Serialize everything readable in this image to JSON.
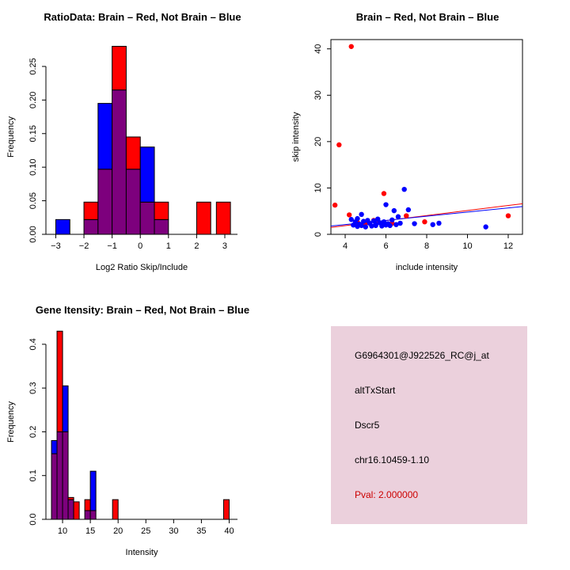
{
  "info_box": {
    "probe_id": "G6964301@J922526_RC@j_at",
    "event_type": "altTxStart",
    "gene": "Dscr5",
    "location": "chr16.10459-1.10",
    "pval": "Pval: 2.000000",
    "bg_color": "#EBD0DC",
    "pval_color": "#CC0000"
  },
  "chart_data": [
    {
      "type": "bar",
      "title": "RatioData: Brain – Red, Not Brain – Blue",
      "xlabel": "Log2 Ratio Skip/Include",
      "ylabel": "Frequency",
      "xlim": [
        -3.35,
        3.45
      ],
      "ylim": [
        0,
        0.29
      ],
      "grid": false,
      "legend": "none",
      "bin_width": 0.5,
      "bin_starts": [
        -3,
        -2.5,
        -2,
        -1.5,
        -1,
        -0.5,
        0,
        0.5,
        2,
        2.7
      ],
      "series": [
        {
          "name": "Brain",
          "color": "#FF0000",
          "values": [
            0,
            0,
            0.048,
            0.097,
            0.28,
            0.145,
            0.048,
            0.048,
            0.048,
            0.048
          ]
        },
        {
          "name": "Not Brain",
          "color": "#0000FF",
          "values": [
            0.022,
            0,
            0.022,
            0.195,
            0.215,
            0.097,
            0.13,
            0.022,
            0,
            0
          ]
        }
      ],
      "overlap_color": "#7D007D",
      "xticks": [
        -3,
        -2,
        -1,
        0,
        1,
        2,
        3
      ],
      "xtick_labels": [
        "−3",
        "−2",
        "−1",
        "0",
        "1",
        "2",
        "3"
      ],
      "yticks": [
        0,
        0.05,
        0.1,
        0.15,
        0.2,
        0.25
      ],
      "ytick_labels": [
        "0.00",
        "0.05",
        "0.10",
        "0.15",
        "0.20",
        "0.25"
      ]
    },
    {
      "type": "scatter",
      "title": "Brain – Red, Not Brain – Blue",
      "xlabel": "include intensity",
      "ylabel": "skip intensity",
      "xlim": [
        3.3,
        12.7
      ],
      "ylim": [
        0,
        42
      ],
      "grid": false,
      "legend": "none",
      "xticks": [
        4,
        6,
        8,
        10,
        12
      ],
      "xtick_labels": [
        "4",
        "6",
        "8",
        "10",
        "12"
      ],
      "yticks": [
        0,
        10,
        20,
        30,
        40
      ],
      "ytick_labels": [
        "0",
        "10",
        "20",
        "30",
        "40"
      ],
      "series": [
        {
          "name": "Brain",
          "color": "#FF0000",
          "points": [
            [
              4.3,
              40.5
            ],
            [
              3.7,
              19.3
            ],
            [
              3.5,
              6.3
            ],
            [
              4.2,
              4.2
            ],
            [
              4.6,
              2.6
            ],
            [
              5.0,
              2.3
            ],
            [
              5.4,
              3.0
            ],
            [
              5.9,
              8.8
            ],
            [
              6.3,
              2.4
            ],
            [
              7.0,
              4.0
            ],
            [
              7.9,
              2.7
            ],
            [
              12.0,
              4.0
            ]
          ]
        },
        {
          "name": "Not Brain",
          "color": "#0000FF",
          "points": [
            [
              4.3,
              3.2
            ],
            [
              4.4,
              2.0
            ],
            [
              4.5,
              2.7
            ],
            [
              4.6,
              1.7
            ],
            [
              4.6,
              3.4
            ],
            [
              4.7,
              2.2
            ],
            [
              4.8,
              4.3
            ],
            [
              4.8,
              1.9
            ],
            [
              4.9,
              2.8
            ],
            [
              5.0,
              1.6
            ],
            [
              5.1,
              3.0
            ],
            [
              5.2,
              2.4
            ],
            [
              5.3,
              1.8
            ],
            [
              5.4,
              2.9
            ],
            [
              5.5,
              2.2
            ],
            [
              5.5,
              1.9
            ],
            [
              5.6,
              3.3
            ],
            [
              5.7,
              2.5
            ],
            [
              5.8,
              1.8
            ],
            [
              5.9,
              2.7
            ],
            [
              6.0,
              6.4
            ],
            [
              6.0,
              2.0
            ],
            [
              6.1,
              2.3
            ],
            [
              6.2,
              1.9
            ],
            [
              6.3,
              3.1
            ],
            [
              6.4,
              5.1
            ],
            [
              6.5,
              2.1
            ],
            [
              6.6,
              3.8
            ],
            [
              6.7,
              2.4
            ],
            [
              6.9,
              9.7
            ],
            [
              7.1,
              5.3
            ],
            [
              7.4,
              2.3
            ],
            [
              8.3,
              2.1
            ],
            [
              8.6,
              2.4
            ],
            [
              10.9,
              1.6
            ]
          ]
        }
      ],
      "fit_lines": [
        {
          "name": "brain-fit",
          "color": "#FF0000",
          "from": [
            3.3,
            1.5
          ],
          "to": [
            12.7,
            6.6
          ]
        },
        {
          "name": "notbrain-fit",
          "color": "#0000FF",
          "from": [
            3.3,
            1.8
          ],
          "to": [
            12.7,
            6.0
          ]
        }
      ]
    },
    {
      "type": "bar",
      "title": "Gene Itensity: Brain – Red, Not Brain – Blue",
      "xlabel": "Intensity",
      "ylabel": "Frequency",
      "xlim": [
        7,
        41.5
      ],
      "ylim": [
        0,
        0.445
      ],
      "grid": false,
      "legend": "none",
      "bin_width": 1,
      "bin_starts": [
        8,
        9,
        10,
        11,
        12,
        14,
        15,
        19,
        39
      ],
      "series": [
        {
          "name": "Brain",
          "color": "#FF0000",
          "values": [
            0.15,
            0.43,
            0.2,
            0.05,
            0.04,
            0.045,
            0.02,
            0.045,
            0.045
          ]
        },
        {
          "name": "Not Brain",
          "color": "#0000FF",
          "values": [
            0.18,
            0.2,
            0.305,
            0.045,
            0,
            0.02,
            0.11,
            0,
            0
          ]
        }
      ],
      "overlap_color": "#7D007D",
      "xticks": [
        10,
        15,
        20,
        25,
        30,
        35,
        40
      ],
      "xtick_labels": [
        "10",
        "15",
        "20",
        "25",
        "30",
        "35",
        "40"
      ],
      "yticks": [
        0,
        0.1,
        0.2,
        0.3,
        0.4
      ],
      "ytick_labels": [
        "0.0",
        "0.1",
        "0.2",
        "0.3",
        "0.4"
      ]
    }
  ]
}
